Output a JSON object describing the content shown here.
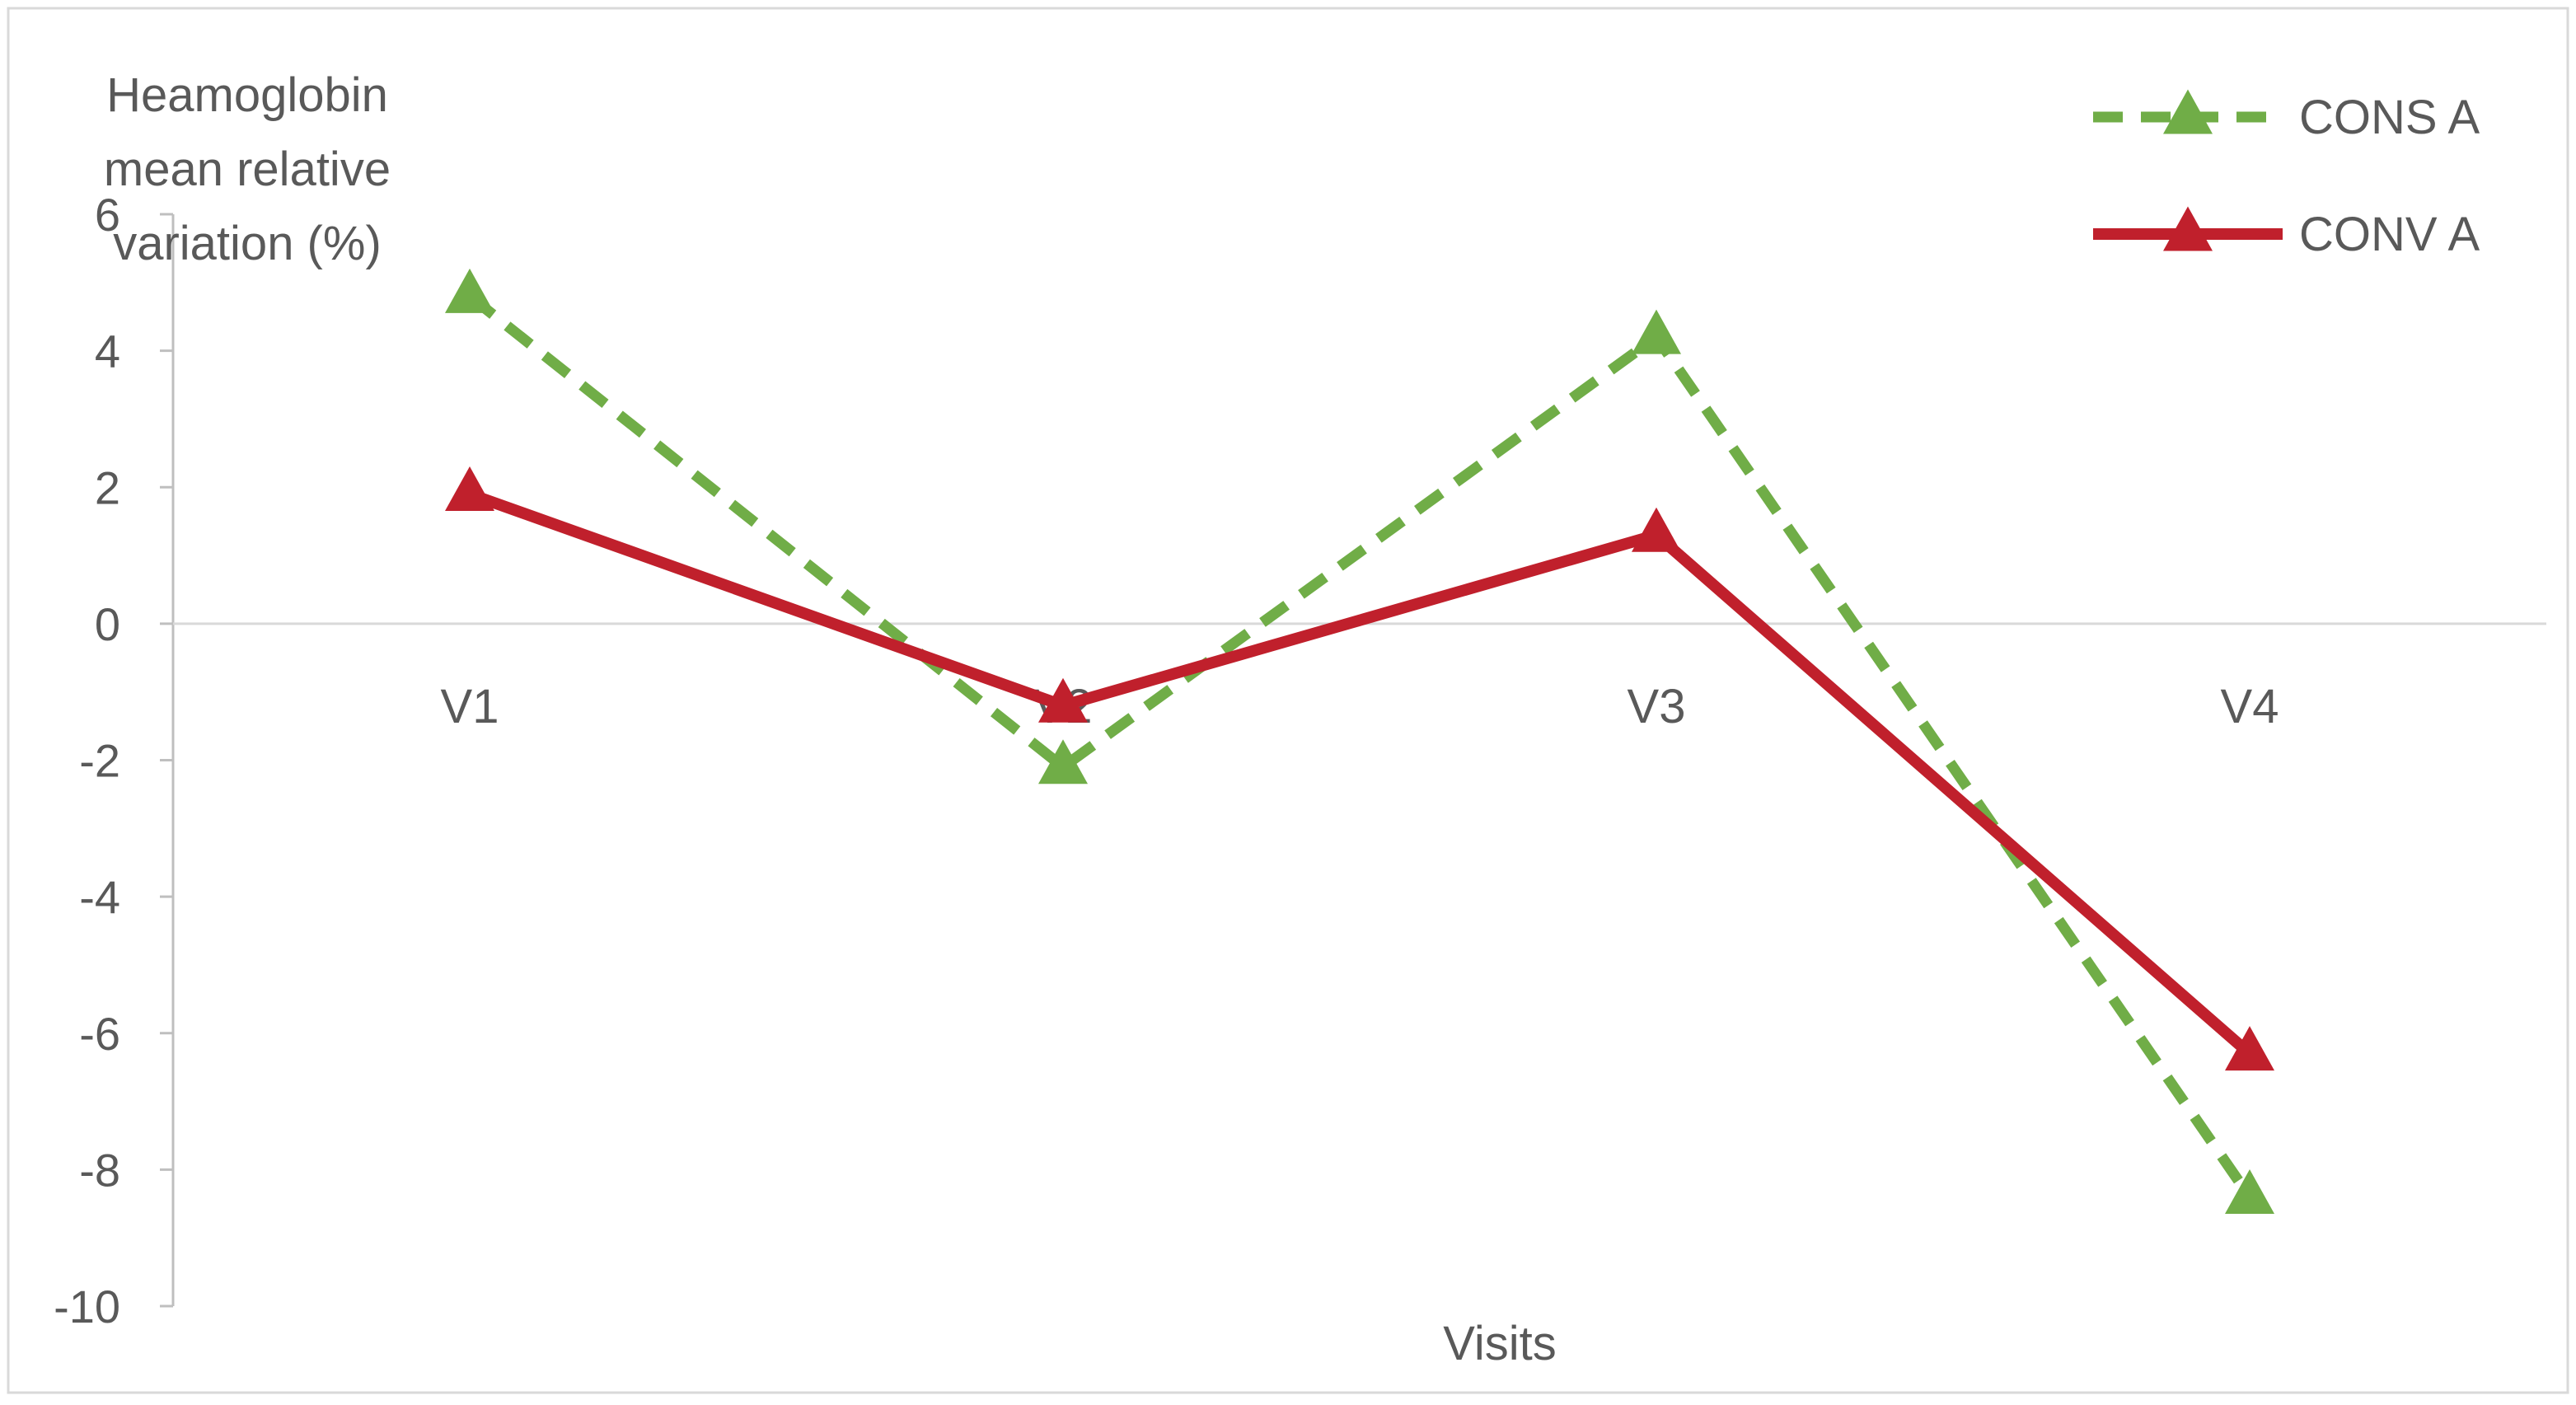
{
  "chart_data": {
    "type": "line",
    "title": "",
    "ylabel_lines": [
      "Heamoglobin",
      "mean relative",
      "variation (%)"
    ],
    "xlabel": "Visits",
    "categories": [
      "V1",
      "V2",
      "V3",
      "V4"
    ],
    "ylim": [
      -10,
      6
    ],
    "yticks": [
      -10,
      -8,
      -6,
      -4,
      -2,
      0,
      2,
      4,
      6
    ],
    "grid": false,
    "legend_position": "top-right",
    "series": [
      {
        "name": "CONS A",
        "values": [
          4.8,
          -2.1,
          4.2,
          -8.4
        ],
        "color": "#70ad47",
        "line_style": "dashed",
        "marker": "triangle"
      },
      {
        "name": "CONV A",
        "values": [
          1.9,
          -1.2,
          1.3,
          -6.3
        ],
        "color": "#c0202c",
        "line_style": "solid",
        "marker": "triangle"
      }
    ]
  }
}
